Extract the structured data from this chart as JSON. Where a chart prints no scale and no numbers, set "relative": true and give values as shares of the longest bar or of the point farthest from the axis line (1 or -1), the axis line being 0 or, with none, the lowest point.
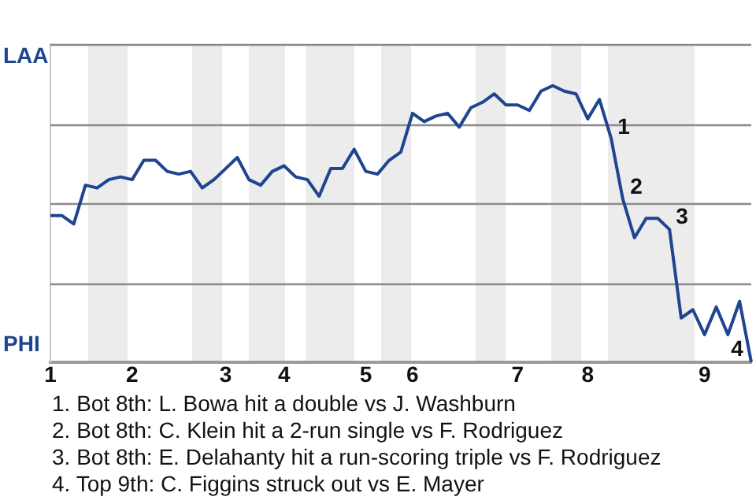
{
  "chart_data": {
    "type": "line",
    "relative": true,
    "categories": [
      "1",
      null,
      null,
      null,
      null,
      null,
      null,
      "2",
      null,
      null,
      null,
      null,
      null,
      null,
      null,
      "3",
      null,
      null,
      null,
      null,
      "4",
      null,
      null,
      null,
      null,
      null,
      null,
      "5",
      null,
      null,
      null,
      "6",
      null,
      null,
      null,
      null,
      null,
      null,
      null,
      null,
      "7",
      null,
      null,
      null,
      null,
      null,
      "8",
      null,
      null,
      null,
      null,
      null,
      null,
      null,
      null,
      null,
      "9",
      null,
      null,
      null,
      null
    ],
    "series": [
      {
        "color": "#1f4590",
        "values": [
          0.53,
          0.53,
          0.5,
          0.64,
          0.63,
          0.66,
          0.67,
          0.66,
          0.73,
          0.73,
          0.69,
          0.68,
          0.69,
          0.63,
          0.66,
          0.7,
          0.74,
          0.66,
          0.64,
          0.69,
          0.71,
          0.67,
          0.66,
          0.6,
          0.7,
          0.7,
          0.77,
          0.69,
          0.68,
          0.73,
          0.76,
          0.9,
          0.87,
          0.89,
          0.9,
          0.85,
          0.92,
          0.94,
          0.97,
          0.93,
          0.93,
          0.91,
          0.98,
          1,
          0.98,
          0.97,
          0.88,
          0.95,
          0.81,
          0.59,
          0.45,
          0.52,
          0.52,
          0.48,
          0.16,
          0.19,
          0.1,
          0.2,
          0.1,
          0.22,
          0
        ]
      }
    ],
    "grid": true,
    "legend": false,
    "marker": "none",
    "line_style": "solid",
    "annotations": [
      "1",
      "2",
      "3",
      "4",
      "LAA",
      "PHI",
      "1. Bot 8th: L. Bowa hit a double vs J. Washburn",
      "2. Bot 8th: C. Klein hit a 2-run single vs F. Rodriguez",
      "3. Bot 8th: E. Delahanty hit a run-scoring triple vs F. Rodriguez",
      "4. Top 9th: C. Figgins struck out vs E. Mayer"
    ]
  }
}
